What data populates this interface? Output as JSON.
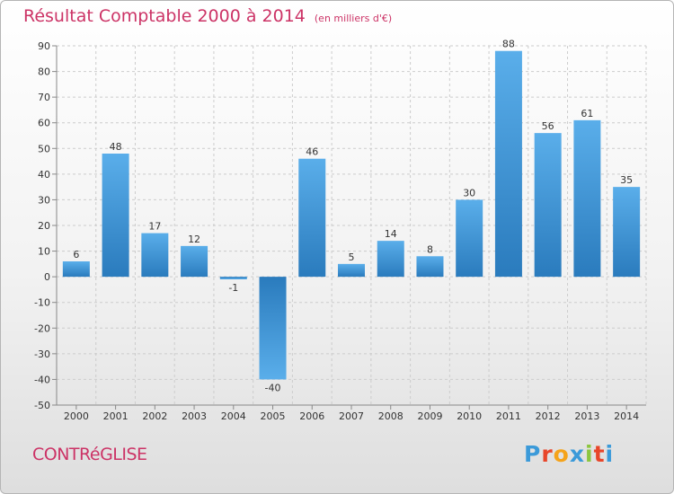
{
  "title": "Résultat Comptable 2000 à 2014",
  "unit": "(en milliers d'€)",
  "commune": "CONTRéGLISE",
  "logo": {
    "letters": [
      "P",
      "r",
      "o",
      "x",
      "i",
      "t",
      "i"
    ],
    "colors": [
      "#3b9ad9",
      "#e8462a",
      "#f5a31a",
      "#3b9ad9",
      "#8cc63f",
      "#e8462a",
      "#3b9ad9"
    ]
  },
  "colors": {
    "bar": "#4a9fdf",
    "bar_dark": "#2b7fc0",
    "title": "#cc3366",
    "grid": "#cccccc"
  },
  "chart_data": {
    "type": "bar",
    "categories": [
      "2000",
      "2001",
      "2002",
      "2003",
      "2004",
      "2005",
      "2006",
      "2007",
      "2008",
      "2009",
      "2010",
      "2011",
      "2012",
      "2013",
      "2014"
    ],
    "values": [
      6,
      48,
      17,
      12,
      -1,
      -40,
      46,
      5,
      14,
      8,
      30,
      88,
      56,
      61,
      35
    ],
    "ylim": [
      -50,
      90
    ],
    "yticks": [
      -50,
      -40,
      -30,
      -20,
      -10,
      0,
      10,
      20,
      30,
      40,
      50,
      60,
      70,
      80,
      90
    ],
    "grid": true,
    "legend": "none"
  }
}
